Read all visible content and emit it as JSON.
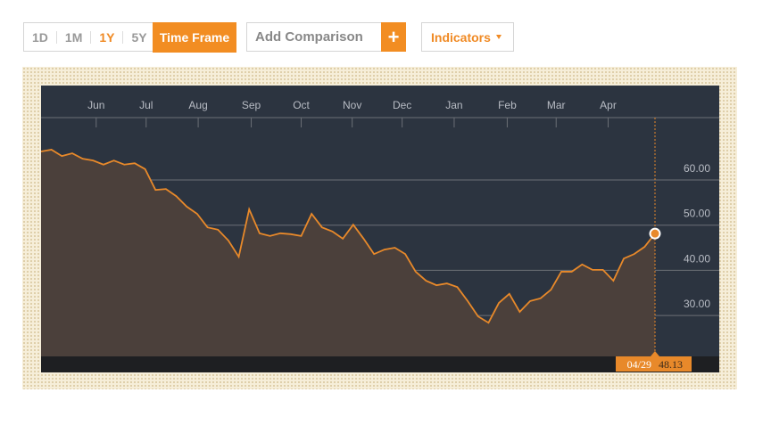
{
  "toolbar": {
    "ranges": [
      "1D",
      "1M",
      "1Y",
      "5Y"
    ],
    "time_frame": "Time Frame",
    "add_comparison": "Add Comparison",
    "plus": "+",
    "indicators": "Indicators"
  },
  "chart_data": {
    "type": "area",
    "series": [
      {
        "color": "#e8892a",
        "values": [
          66.3,
          66.7,
          65.3,
          65.9,
          64.7,
          64.3,
          63.4,
          64.3,
          63.4,
          63.7,
          62.4,
          57.8,
          58.0,
          56.4,
          54.1,
          52.5,
          49.5,
          49.0,
          46.6,
          43.0,
          53.5,
          48.2,
          47.6,
          48.2,
          48.0,
          47.6,
          52.5,
          49.5,
          48.6,
          47.0,
          50.1,
          47.0,
          43.6,
          44.6,
          45.0,
          43.6,
          39.7,
          37.7,
          36.7,
          37.1,
          36.3,
          33.2,
          29.8,
          28.4,
          32.8,
          34.8,
          30.8,
          33.2,
          33.8,
          35.7,
          39.7,
          39.7,
          41.3,
          40.1,
          40.1,
          37.7,
          42.6,
          43.6,
          45.2,
          48.13
        ]
      }
    ],
    "xlim": [
      0,
      59
    ],
    "xticks": [
      {
        "value": 5.3,
        "label": "Jun"
      },
      {
        "value": 10.1,
        "label": "Jul"
      },
      {
        "value": 15.1,
        "label": "Aug"
      },
      {
        "value": 20.2,
        "label": "Sep"
      },
      {
        "value": 25.0,
        "label": "Oct"
      },
      {
        "value": 29.9,
        "label": "Nov"
      },
      {
        "value": 34.7,
        "label": "Dec"
      },
      {
        "value": 39.7,
        "label": "Jan"
      },
      {
        "value": 44.8,
        "label": "Feb"
      },
      {
        "value": 49.5,
        "label": "Mar"
      },
      {
        "value": 54.5,
        "label": "Apr"
      }
    ],
    "ylim": [
      20.95,
      73.8
    ],
    "yticks": [
      {
        "value": 30,
        "label": "30.00"
      },
      {
        "value": 40,
        "label": "40.00"
      },
      {
        "value": 50,
        "label": "50.00"
      },
      {
        "value": 60,
        "label": "60.00"
      }
    ],
    "grid": true,
    "cursor_date": "04/29"
  }
}
